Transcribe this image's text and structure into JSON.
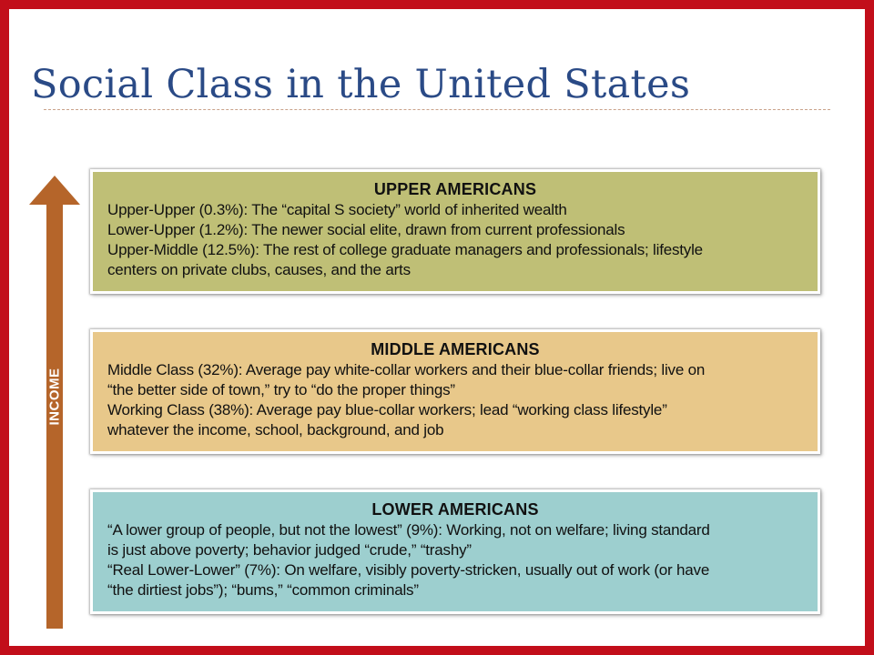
{
  "slide": {
    "title": "Social Class in the United States",
    "colors": {
      "border": "#c20e1a",
      "title": "#2a4a86",
      "arrow": "#b5652a",
      "upper_box": "#bfbf76",
      "middle_box": "#e8c88a",
      "lower_box": "#9dcfcf"
    }
  },
  "axis": {
    "label": "INCOME",
    "icon": "up-arrow-icon"
  },
  "tiers": [
    {
      "heading": "UPPER AMERICANS",
      "lines": [
        "Upper-Upper (0.3%): The “capital S society” world of inherited wealth",
        "Lower-Upper (1.2%): The newer social elite, drawn from current professionals",
        "Upper-Middle (12.5%): The rest of college graduate managers and professionals; lifestyle",
        "centers on private clubs, causes, and the arts"
      ]
    },
    {
      "heading": "MIDDLE AMERICANS",
      "lines": [
        "Middle Class (32%): Average pay white-collar workers and their blue-collar friends; live on",
        "“the better side of town,” try to “do the proper things”",
        "Working Class (38%): Average pay blue-collar workers; lead “working class lifestyle”",
        "whatever the income, school, background, and job"
      ]
    },
    {
      "heading": "LOWER AMERICANS",
      "lines": [
        "“A lower group of people, but not the lowest” (9%): Working, not on welfare; living standard",
        "is just above poverty; behavior judged “crude,” “trashy”",
        "“Real Lower-Lower” (7%): On welfare, visibly poverty-stricken, usually out of work (or have",
        "“the dirtiest jobs”); “bums,” “common criminals”"
      ]
    }
  ]
}
